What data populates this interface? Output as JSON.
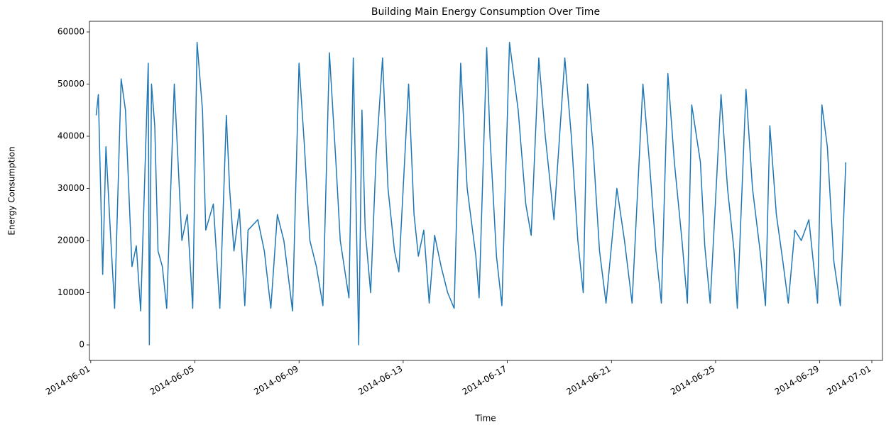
{
  "chart_data": {
    "type": "line",
    "title": "Building Main Energy Consumption Over Time",
    "xlabel": "Time",
    "ylabel": "Energy Consumption",
    "color": "#1f77b4",
    "x": [
      "2014-06-01T05:00",
      "2014-06-01T07:00",
      "2014-06-01T11:00",
      "2014-06-01T14:00",
      "2014-06-01T18:00",
      "2014-06-01T22:00",
      "2014-06-02T04:00",
      "2014-06-02T08:00",
      "2014-06-02T14:00",
      "2014-06-02T18:00",
      "2014-06-02T22:00",
      "2014-06-03T05:00",
      "2014-06-03T06:00",
      "2014-06-03T08:00",
      "2014-06-03T11:00",
      "2014-06-03T14:00",
      "2014-06-03T18:00",
      "2014-06-03T22:00",
      "2014-06-04T05:00",
      "2014-06-04T12:00",
      "2014-06-04T17:00",
      "2014-06-04T22:00",
      "2014-06-05T02:00",
      "2014-06-05T07:00",
      "2014-06-05T10:00",
      "2014-06-05T17:00",
      "2014-06-05T23:00",
      "2014-06-06T05:00",
      "2014-06-06T08:00",
      "2014-06-06T12:00",
      "2014-06-06T17:00",
      "2014-06-06T22:00",
      "2014-06-07T01:00",
      "2014-06-07T10:00",
      "2014-06-07T16:00",
      "2014-06-07T22:00",
      "2014-06-08T04:00",
      "2014-06-08T10:00",
      "2014-06-08T13:00",
      "2014-06-08T18:00",
      "2014-06-09T00:00",
      "2014-06-09T05:00",
      "2014-06-09T10:00",
      "2014-06-09T16:00",
      "2014-06-09T22:00",
      "2014-06-10T04:00",
      "2014-06-10T10:00",
      "2014-06-10T14:00",
      "2014-06-10T22:00",
      "2014-06-11T02:00",
      "2014-06-11T07:00",
      "2014-06-11T10:00",
      "2014-06-11T13:00",
      "2014-06-11T18:00",
      "2014-06-11T23:00",
      "2014-06-12T05:00",
      "2014-06-12T10:00",
      "2014-06-12T16:00",
      "2014-06-12T20:00",
      "2014-06-13T05:00",
      "2014-06-13T10:00",
      "2014-06-13T14:00",
      "2014-06-13T19:00",
      "2014-06-14T00:00",
      "2014-06-14T05:00",
      "2014-06-14T11:00",
      "2014-06-14T17:00",
      "2014-06-14T23:00",
      "2014-06-15T05:00",
      "2014-06-15T11:00",
      "2014-06-15T19:00",
      "2014-06-15T22:00",
      "2014-06-16T05:00",
      "2014-06-16T08:00",
      "2014-06-16T14:00",
      "2014-06-16T19:00",
      "2014-06-17T02:00",
      "2014-06-17T10:00",
      "2014-06-17T17:00",
      "2014-06-17T22:00",
      "2014-06-18T05:00",
      "2014-06-18T11:00",
      "2014-06-18T19:00",
      "2014-06-19T05:00",
      "2014-06-19T11:00",
      "2014-06-19T17:00",
      "2014-06-19T22:00",
      "2014-06-20T02:00",
      "2014-06-20T07:00",
      "2014-06-20T13:00",
      "2014-06-20T19:00",
      "2014-06-21T05:00",
      "2014-06-21T12:00",
      "2014-06-21T19:00",
      "2014-06-22T05:00",
      "2014-06-22T11:00",
      "2014-06-22T17:00",
      "2014-06-22T22:00",
      "2014-06-23T04:00",
      "2014-06-23T10:00",
      "2014-06-23T17:00",
      "2014-06-23T22:00",
      "2014-06-24T02:00",
      "2014-06-24T10:00",
      "2014-06-24T14:00",
      "2014-06-24T19:00",
      "2014-06-25T05:00",
      "2014-06-25T11:00",
      "2014-06-25T17:00",
      "2014-06-25T20:00",
      "2014-06-26T04:00",
      "2014-06-26T10:00",
      "2014-06-26T17:00",
      "2014-06-26T22:00",
      "2014-06-27T02:00",
      "2014-06-27T08:00",
      "2014-06-27T14:00",
      "2014-06-27T19:00",
      "2014-06-28T01:00",
      "2014-06-28T07:00",
      "2014-06-28T14:00",
      "2014-06-28T22:00",
      "2014-06-29T02:00",
      "2014-06-29T07:00",
      "2014-06-29T13:00",
      "2014-06-29T19:00",
      "2014-06-30T00:00"
    ],
    "values": [
      44000,
      48000,
      13500,
      38000,
      22000,
      7000,
      51000,
      45000,
      15000,
      19000,
      6500,
      54000,
      0,
      50000,
      42000,
      18000,
      15000,
      7000,
      50000,
      20000,
      25000,
      7000,
      58000,
      45000,
      22000,
      27000,
      7000,
      44000,
      30000,
      18000,
      26000,
      7500,
      22000,
      24000,
      18000,
      7000,
      25000,
      20000,
      15000,
      6500,
      54000,
      38000,
      20000,
      15000,
      7500,
      56000,
      35000,
      20000,
      9000,
      55000,
      0,
      45000,
      22000,
      10000,
      36000,
      55000,
      30000,
      18000,
      14000,
      50000,
      25000,
      17000,
      22000,
      8000,
      21000,
      15000,
      10000,
      7000,
      54000,
      30000,
      17000,
      9000,
      57000,
      40000,
      17000,
      7500,
      58000,
      45000,
      27000,
      21000,
      55000,
      40000,
      24000,
      55000,
      40000,
      20000,
      10000,
      50000,
      38000,
      18000,
      8000,
      30000,
      20000,
      8000,
      50000,
      35000,
      18000,
      8000,
      52000,
      35000,
      20000,
      8000,
      46000,
      35000,
      19000,
      8000,
      48000,
      30000,
      18000,
      7000,
      49000,
      30000,
      18000,
      7500,
      42000,
      25000,
      16000,
      8000,
      22000,
      20000,
      24000,
      8000,
      46000,
      38000,
      16000,
      7500,
      35000
    ],
    "xlim": [
      "2014-05-31T22:48",
      "2014-07-01T09:50"
    ],
    "xticks": [
      "2014-06-01",
      "2014-06-05",
      "2014-06-09",
      "2014-06-13",
      "2014-06-17",
      "2014-06-21",
      "2014-06-25",
      "2014-06-29",
      "2014-07-01"
    ],
    "ylim": [
      -2990,
      62040
    ],
    "yticks": [
      0,
      10000,
      20000,
      30000,
      40000,
      50000,
      60000
    ]
  }
}
